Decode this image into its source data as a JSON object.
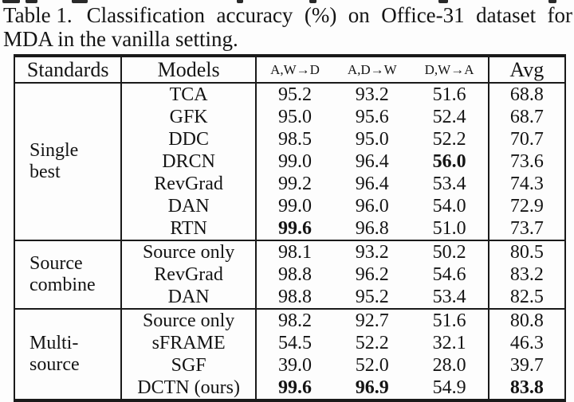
{
  "caption": {
    "prefix": "Table 1.",
    "line1_rest": "Classification accuracy (%) on Office-31 dataset for",
    "line2": "MDA in the vanilla setting."
  },
  "table": {
    "headers": {
      "standards": "Standards",
      "models": "Models",
      "transfer_tasks": [
        "A,W→D",
        "A,D→W",
        "D,W→A"
      ],
      "avg": "Avg"
    },
    "sections": [
      {
        "label": "Single best",
        "label_lines": [
          "Single",
          "best"
        ],
        "rows": [
          {
            "model": "TCA",
            "values": [
              "95.2",
              "93.2",
              "51.6"
            ],
            "bold": [
              false,
              false,
              false
            ],
            "avg": "68.8",
            "avg_bold": false
          },
          {
            "model": "GFK",
            "values": [
              "95.0",
              "95.6",
              "52.4"
            ],
            "bold": [
              false,
              false,
              false
            ],
            "avg": "68.7",
            "avg_bold": false
          },
          {
            "model": "DDC",
            "values": [
              "98.5",
              "95.0",
              "52.2"
            ],
            "bold": [
              false,
              false,
              false
            ],
            "avg": "70.7",
            "avg_bold": false
          },
          {
            "model": "DRCN",
            "values": [
              "99.0",
              "96.4",
              "56.0"
            ],
            "bold": [
              false,
              false,
              true
            ],
            "avg": "73.6",
            "avg_bold": false
          },
          {
            "model": "RevGrad",
            "values": [
              "99.2",
              "96.4",
              "53.4"
            ],
            "bold": [
              false,
              false,
              false
            ],
            "avg": "74.3",
            "avg_bold": false
          },
          {
            "model": "DAN",
            "values": [
              "99.0",
              "96.0",
              "54.0"
            ],
            "bold": [
              false,
              false,
              false
            ],
            "avg": "72.9",
            "avg_bold": false
          },
          {
            "model": "RTN",
            "values": [
              "99.6",
              "96.8",
              "51.0"
            ],
            "bold": [
              true,
              false,
              false
            ],
            "avg": "73.7",
            "avg_bold": false
          }
        ]
      },
      {
        "label": "Source combine",
        "label_lines": [
          "Source",
          "combine"
        ],
        "rows": [
          {
            "model": "Source only",
            "values": [
              "98.1",
              "93.2",
              "50.2"
            ],
            "bold": [
              false,
              false,
              false
            ],
            "avg": "80.5",
            "avg_bold": false
          },
          {
            "model": "RevGrad",
            "values": [
              "98.8",
              "96.2",
              "54.6"
            ],
            "bold": [
              false,
              false,
              false
            ],
            "avg": "83.2",
            "avg_bold": false
          },
          {
            "model": "DAN",
            "values": [
              "98.8",
              "95.2",
              "53.4"
            ],
            "bold": [
              false,
              false,
              false
            ],
            "avg": "82.5",
            "avg_bold": false
          }
        ]
      },
      {
        "label": "Multi-source",
        "label_lines": [
          "Multi-",
          "source"
        ],
        "rows": [
          {
            "model": "Source only",
            "values": [
              "98.2",
              "92.7",
              "51.6"
            ],
            "bold": [
              false,
              false,
              false
            ],
            "avg": "80.8",
            "avg_bold": false
          },
          {
            "model": "sFRAME",
            "values": [
              "54.5",
              "52.2",
              "32.1"
            ],
            "bold": [
              false,
              false,
              false
            ],
            "avg": "46.3",
            "avg_bold": false
          },
          {
            "model": "SGF",
            "values": [
              "39.0",
              "52.0",
              "28.0"
            ],
            "bold": [
              false,
              false,
              false
            ],
            "avg": "39.7",
            "avg_bold": false
          },
          {
            "model": "DCTN (ours)",
            "values": [
              "99.6",
              "96.9",
              "54.9"
            ],
            "bold": [
              true,
              true,
              false
            ],
            "avg": "83.8",
            "avg_bold": true
          }
        ]
      }
    ]
  }
}
